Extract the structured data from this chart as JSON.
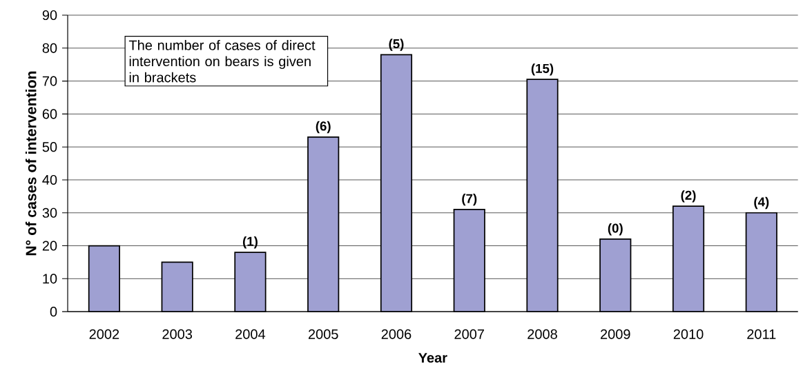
{
  "chart_data": {
    "type": "bar",
    "xlabel": "Year",
    "ylabel": "N° of cases of intervention",
    "categories": [
      "2002",
      "2003",
      "2004",
      "2005",
      "2006",
      "2007",
      "2008",
      "2009",
      "2010",
      "2011"
    ],
    "values": [
      20,
      15,
      18,
      53,
      78,
      31,
      70.5,
      22,
      32,
      30
    ],
    "color": "#9fa0d2",
    "ylim": [
      0,
      90
    ],
    "yticks": [
      0,
      10,
      20,
      30,
      40,
      50,
      60,
      70,
      80,
      90
    ],
    "grid": "y",
    "annotations": [
      "The number of cases of direct intervention on bears is given in brackets",
      {
        "text": "(1)",
        "x": "2004",
        "y": 18
      },
      {
        "text": "(6)",
        "x": "2005",
        "y": 53
      },
      {
        "text": "(5)",
        "x": "2006",
        "y": 78
      },
      {
        "text": "(7)",
        "x": "2007",
        "y": 31
      },
      {
        "text": "(15)",
        "x": "2008",
        "y": 70.5
      },
      {
        "text": "(0)",
        "x": "2009",
        "y": 22
      },
      {
        "text": "(2)",
        "x": "2010",
        "y": 32
      },
      {
        "text": "(4)",
        "x": "2011",
        "y": 30
      }
    ]
  }
}
